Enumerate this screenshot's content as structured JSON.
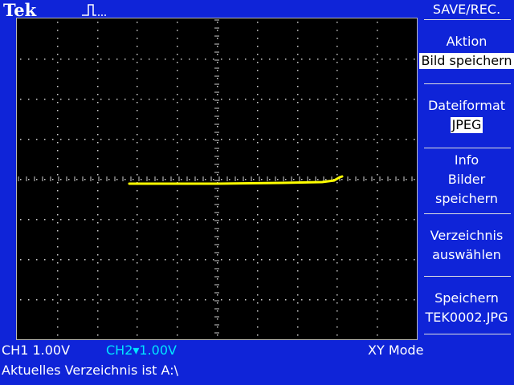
{
  "header": {
    "brand": "Tek"
  },
  "menu": {
    "title": "SAVE/REC.",
    "items": [
      {
        "label": "Aktion",
        "value": "Bild speichern"
      },
      {
        "label": "Dateiformat",
        "value": "JPEG"
      },
      {
        "lines": [
          "Info",
          "Bilder",
          "speichern"
        ]
      },
      {
        "lines": [
          "Verzeichnis",
          "auswählen"
        ]
      },
      {
        "lines": [
          "Speichern",
          "TEK0002.JPG"
        ]
      }
    ]
  },
  "status": {
    "ch1": "CH1  1.00V",
    "ch2": "CH2▾1.00V",
    "mode": "XY Mode",
    "message": "Aktuelles Verzeichnis ist A:\\"
  },
  "colors": {
    "background": "#0f24d8",
    "screen": "#000000",
    "trace": "#ffff00",
    "ch2": "#00e5ff"
  }
}
